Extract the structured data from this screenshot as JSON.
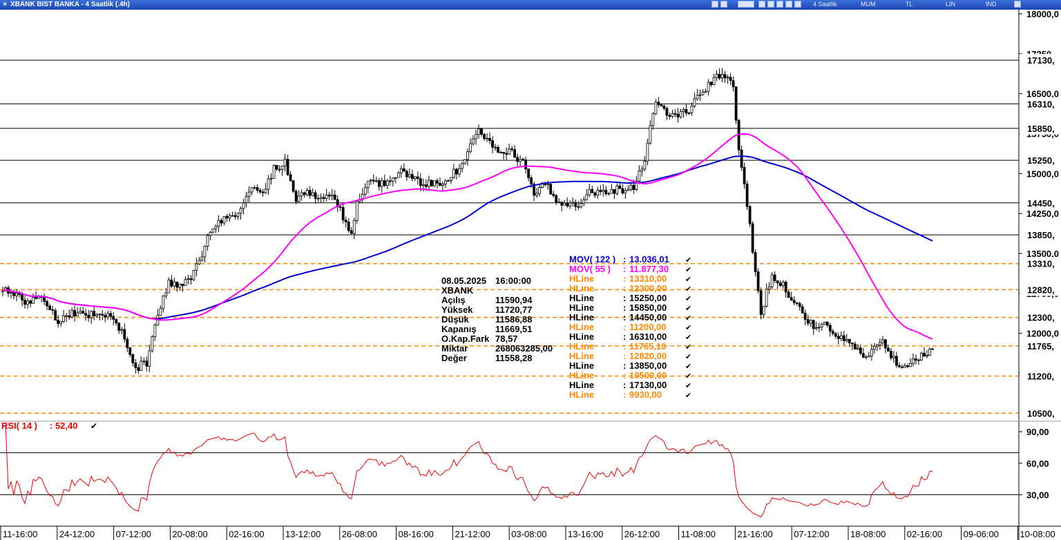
{
  "window": {
    "title": "XBANK BIST BANKA - 4 Saatlik (.4h)",
    "period_label": "4 Saatlik",
    "options": [
      "MUM",
      "TL",
      "LIN",
      "IND"
    ]
  },
  "info_box": {
    "date": "08.05.2025",
    "time": "16:00:00",
    "symbol": "XBANK",
    "rows": [
      {
        "label": "Açılış",
        "value": "11590,94"
      },
      {
        "label": "Yüksek",
        "value": "11720,77"
      },
      {
        "label": "Düşük",
        "value": "11586,88"
      },
      {
        "label": "Kapanış",
        "value": "11669,51"
      },
      {
        "label": "O.Kap.Fark",
        "value": "78,57"
      },
      {
        "label": "Miktar",
        "value": "268063285,00"
      },
      {
        "label": "Değer",
        "value": "11558,28"
      }
    ]
  },
  "legend": [
    {
      "name": "MOV( 122 )",
      "value": "13.036,01",
      "color": "#0000cc"
    },
    {
      "name": "MOV( 55 )",
      "value": "11.877,30",
      "color": "#ff00ff"
    },
    {
      "name": "HLine",
      "value": "13310,00",
      "color": "#ff8800"
    },
    {
      "name": "HLine",
      "value": "12300,00",
      "color": "#ff8800"
    },
    {
      "name": "HLine",
      "value": "15250,00",
      "color": "#000000"
    },
    {
      "name": "HLine",
      "value": "15850,00",
      "color": "#000000"
    },
    {
      "name": "HLine",
      "value": "14450,00",
      "color": "#000000"
    },
    {
      "name": "HLine",
      "value": "11200,00",
      "color": "#ff8800"
    },
    {
      "name": "HLine",
      "value": "16310,00",
      "color": "#000000"
    },
    {
      "name": "HLine",
      "value": "11765,10",
      "color": "#ff8800"
    },
    {
      "name": "HLine",
      "value": "12820,00",
      "color": "#ff8800"
    },
    {
      "name": "HLine",
      "value": "13850,00",
      "color": "#000000"
    },
    {
      "name": "HLine",
      "value": "10500,00",
      "color": "#ff8800"
    },
    {
      "name": "HLine",
      "value": "17130,00",
      "color": "#000000"
    },
    {
      "name": "HLine",
      "value": "9930,00",
      "color": "#ff8800"
    }
  ],
  "chart_data": [
    {
      "type": "candlestick",
      "title": "XBANK BIST BANKA - 4 Saatlik (.4h)",
      "ylim": [
        10350,
        18000
      ],
      "y_ticks": [
        18000,
        17250,
        16500,
        15750,
        15000,
        14250,
        13500,
        12750,
        12000,
        11250
      ],
      "y_tick_labels": [
        "18000,0",
        "17250,",
        "16500,0",
        "15750,0",
        "15000,0",
        "14250,0",
        "13500,0",
        "12750,0",
        "12000,0",
        "11250,0"
      ],
      "x_tick_labels": [
        "11-16:00",
        "24-12:00",
        "07-12:00",
        "20-08:00",
        "02-16:00",
        "13-12:00",
        "26-08:00",
        "08-16:00",
        "21-12:00",
        "03-08:00",
        "13-16:00",
        "26-12:00",
        "11-08:00",
        "21-16:00",
        "07-12:00",
        "18-08:00",
        "02-16:00",
        "09-06:00",
        "10-08:00"
      ],
      "hlines_solid": [
        17130,
        16310,
        15850,
        15250,
        14450,
        13850
      ],
      "hlines_dashed": [
        13310,
        12820,
        12300,
        11765,
        11200,
        10500
      ],
      "hline_labels": [
        {
          "value": 17130,
          "text": "17130,"
        },
        {
          "value": 16310,
          "text": "16310,"
        },
        {
          "value": 15850,
          "text": "15850,"
        },
        {
          "value": 15250,
          "text": "15250,"
        },
        {
          "value": 14450,
          "text": "14450,"
        },
        {
          "value": 13850,
          "text": "13850,"
        },
        {
          "value": 13310,
          "text": "13310,"
        },
        {
          "value": 12820,
          "text": "12820,"
        },
        {
          "value": 12300,
          "text": "12300,"
        },
        {
          "value": 11765,
          "text": "11765,"
        },
        {
          "value": 11200,
          "text": "11200,"
        },
        {
          "value": 10500,
          "text": "10500,"
        }
      ],
      "close_anchors": [
        [
          0,
          12850
        ],
        [
          8,
          12600
        ],
        [
          14,
          12700
        ],
        [
          20,
          12250
        ],
        [
          26,
          12400
        ],
        [
          32,
          12350
        ],
        [
          38,
          12350
        ],
        [
          44,
          11950
        ],
        [
          48,
          11350
        ],
        [
          52,
          11450
        ],
        [
          56,
          12350
        ],
        [
          60,
          12950
        ],
        [
          64,
          12900
        ],
        [
          68,
          13050
        ],
        [
          72,
          13400
        ],
        [
          74,
          13900
        ],
        [
          78,
          14150
        ],
        [
          82,
          14150
        ],
        [
          86,
          14350
        ],
        [
          90,
          14700
        ],
        [
          94,
          14650
        ],
        [
          98,
          15100
        ],
        [
          102,
          15200
        ],
        [
          106,
          14550
        ],
        [
          110,
          14700
        ],
        [
          114,
          14500
        ],
        [
          118,
          14650
        ],
        [
          122,
          14300
        ],
        [
          126,
          13900
        ],
        [
          128,
          14450
        ],
        [
          132,
          14800
        ],
        [
          136,
          14800
        ],
        [
          140,
          14900
        ],
        [
          144,
          15050
        ],
        [
          148,
          14900
        ],
        [
          152,
          14800
        ],
        [
          156,
          14800
        ],
        [
          160,
          14900
        ],
        [
          164,
          15050
        ],
        [
          168,
          15400
        ],
        [
          172,
          15800
        ],
        [
          176,
          15550
        ],
        [
          180,
          15350
        ],
        [
          184,
          15400
        ],
        [
          188,
          15200
        ],
        [
          192,
          14600
        ],
        [
          196,
          14800
        ],
        [
          200,
          14500
        ],
        [
          204,
          14450
        ],
        [
          208,
          14450
        ],
        [
          212,
          14650
        ],
        [
          216,
          14650
        ],
        [
          220,
          14700
        ],
        [
          224,
          14700
        ],
        [
          228,
          14750
        ],
        [
          232,
          15300
        ],
        [
          236,
          16400
        ],
        [
          240,
          16100
        ],
        [
          244,
          16100
        ],
        [
          248,
          16200
        ],
        [
          252,
          16500
        ],
        [
          256,
          16700
        ],
        [
          260,
          16900
        ],
        [
          264,
          16600
        ],
        [
          266,
          15500
        ],
        [
          270,
          14000
        ],
        [
          274,
          12400
        ],
        [
          278,
          13100
        ],
        [
          282,
          12900
        ],
        [
          286,
          12600
        ],
        [
          290,
          12300
        ],
        [
          294,
          12100
        ],
        [
          298,
          12150
        ],
        [
          302,
          11900
        ],
        [
          306,
          11850
        ],
        [
          310,
          11600
        ],
        [
          314,
          11650
        ],
        [
          318,
          11900
        ],
        [
          322,
          11500
        ],
        [
          326,
          11400
        ],
        [
          330,
          11550
        ],
        [
          334,
          11600
        ],
        [
          336,
          11670
        ]
      ],
      "n_candles": 337,
      "moving_averages": [
        {
          "name": "MOV( 122 )",
          "last": 13036.01,
          "color": "#0000cc"
        },
        {
          "name": "MOV( 55 )",
          "last": 11877.3,
          "color": "#ff00ff"
        }
      ]
    },
    {
      "type": "line",
      "title": "RSI( 14 )",
      "name": "RSI( 14 )",
      "value_label": ": 52,40",
      "last": 52.4,
      "ylim": [
        0,
        100
      ],
      "y_ticks": [
        90,
        60,
        30
      ],
      "y_tick_labels": [
        "90,00",
        "60,00",
        "30,00"
      ],
      "reference_lines": [
        70,
        30
      ]
    }
  ]
}
